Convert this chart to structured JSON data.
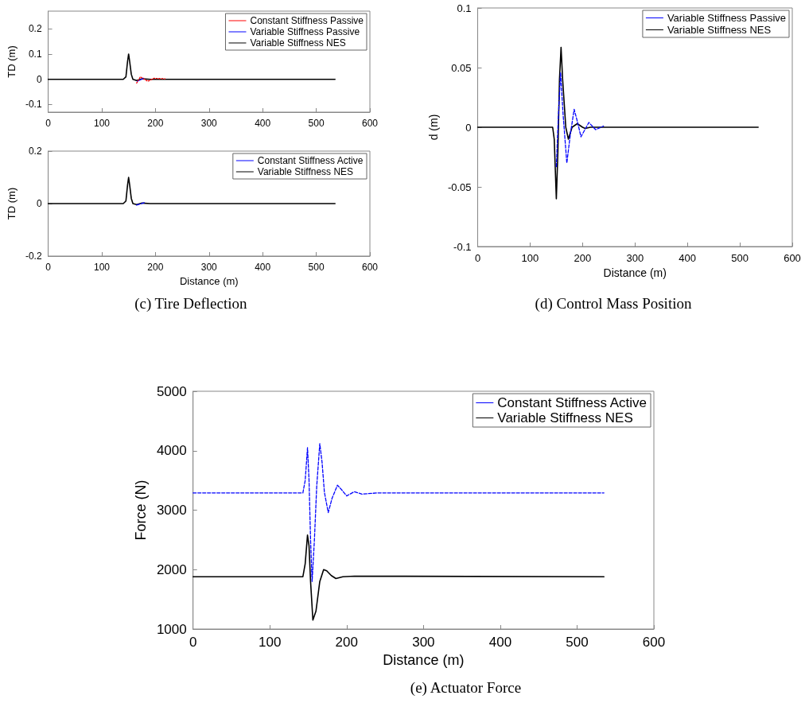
{
  "chart_data": [
    {
      "type": "line",
      "ylabel": "TD (m)",
      "xlim": [
        0,
        600
      ],
      "xticks": [
        0,
        100,
        200,
        300,
        400,
        500,
        600
      ],
      "ylim": [
        -0.13,
        0.27
      ],
      "yticks": [
        -0.1,
        0,
        0.1,
        0.2
      ],
      "grid": false,
      "legend": "top right",
      "marker": "none",
      "series": [
        {
          "name": "Constant Stiffness Passive",
          "color": "#ff0000",
          "line_style": "dotted",
          "x": [
            165,
            172,
            186,
            197,
            218
          ],
          "values": [
            -0.015,
            0.01,
            -0.008,
            0.004,
            0.002
          ]
        },
        {
          "name": "Variable Stiffness Passive",
          "color": "#0000ff",
          "line_style": "solid",
          "x": [
            166,
            178
          ],
          "values": [
            -0.008,
            0.004
          ]
        },
        {
          "name": "Variable Stiffness NES",
          "color": "#000000",
          "line_style": "solid",
          "x": [
            0,
            140,
            145,
            148,
            150,
            152,
            155,
            158,
            165,
            175,
            190,
            535
          ],
          "values": [
            0,
            0,
            0.01,
            0.07,
            0.1,
            0.07,
            0.02,
            0,
            -0.005,
            0.002,
            0,
            0
          ]
        }
      ]
    },
    {
      "type": "line",
      "xlabel": "Distance (m)",
      "ylabel": "TD (m)",
      "xlim": [
        0,
        600
      ],
      "xticks": [
        0,
        100,
        200,
        300,
        400,
        500,
        600
      ],
      "ylim": [
        -0.2,
        0.2
      ],
      "yticks": [
        -0.2,
        0,
        0.2
      ],
      "grid": false,
      "legend": "top right",
      "marker": "none",
      "annotations": [
        "(c) Tire Deflection"
      ],
      "series": [
        {
          "name": "Constant Stiffness Active",
          "color": "#0000ff",
          "line_style": "dashed",
          "x": [
            165,
            180
          ],
          "values": [
            -0.006,
            0.004
          ]
        },
        {
          "name": "Variable Stiffness NES",
          "color": "#000000",
          "line_style": "solid",
          "x": [
            0,
            140,
            145,
            148,
            150,
            152,
            155,
            158,
            165,
            175,
            190,
            535
          ],
          "values": [
            0,
            0,
            0.01,
            0.07,
            0.1,
            0.07,
            0.02,
            0,
            -0.004,
            0.002,
            0,
            0
          ]
        }
      ]
    },
    {
      "type": "line",
      "xlabel": "Distance (m)",
      "ylabel": "d (m)",
      "xlim": [
        0,
        600
      ],
      "xticks": [
        0,
        100,
        200,
        300,
        400,
        500,
        600
      ],
      "ylim": [
        -0.1,
        0.1
      ],
      "yticks": [
        -0.1,
        -0.05,
        0,
        0.05,
        0.1
      ],
      "grid": false,
      "legend": "top right",
      "marker": "none",
      "annotations": [
        "(d) Control Mass Position"
      ],
      "series": [
        {
          "name": "Variable Stiffness Passive",
          "color": "#0000ff",
          "line_style": "dashed",
          "x": [
            150,
            153,
            158,
            163,
            170,
            177,
            184,
            190,
            197,
            212,
            225,
            240
          ],
          "values": [
            -0.033,
            0,
            0.046,
            0.01,
            -0.03,
            -0.005,
            0.015,
            0.005,
            -0.008,
            0.004,
            -0.002,
            0.001
          ]
        },
        {
          "name": "Variable Stiffness NES",
          "color": "#000000",
          "line_style": "solid",
          "x": [
            0,
            143,
            146,
            150,
            153,
            156,
            159,
            162,
            168,
            173,
            180,
            190,
            200,
            205,
            215,
            535
          ],
          "values": [
            0,
            0,
            -0.01,
            -0.06,
            -0.02,
            0.04,
            0.067,
            0.04,
            0,
            -0.01,
            0,
            0.003,
            0,
            -0.001,
            0,
            0
          ]
        }
      ]
    },
    {
      "type": "line",
      "xlabel": "Distance (m)",
      "ylabel": "Force (N)",
      "xlim": [
        0,
        600
      ],
      "xticks": [
        0,
        100,
        200,
        300,
        400,
        500,
        600
      ],
      "ylim": [
        1000,
        5000
      ],
      "yticks": [
        1000,
        2000,
        3000,
        4000,
        5000
      ],
      "grid": false,
      "legend": "top right",
      "marker": "none",
      "annotations": [
        "(e) Actuator Force"
      ],
      "series": [
        {
          "name": "Constant Stiffness Active",
          "color": "#0000ff",
          "line_style": "dashed",
          "x": [
            0,
            143,
            146,
            149,
            151,
            153,
            155,
            158,
            161,
            165,
            168,
            171,
            176,
            181,
            188,
            193,
            200,
            210,
            220,
            240,
            535
          ],
          "values": [
            3290,
            3290,
            3500,
            4050,
            3500,
            2500,
            1800,
            2500,
            3400,
            4120,
            3800,
            3300,
            2960,
            3200,
            3420,
            3350,
            3240,
            3310,
            3270,
            3290,
            3290
          ]
        },
        {
          "name": "Variable Stiffness NES",
          "color": "#000000",
          "line_style": "solid",
          "x": [
            0,
            143,
            146,
            149,
            151,
            153,
            156,
            160,
            165,
            170,
            174,
            180,
            186,
            195,
            210,
            535
          ],
          "values": [
            1880,
            1880,
            2100,
            2580,
            2400,
            1800,
            1150,
            1300,
            1800,
            2000,
            1980,
            1900,
            1850,
            1880,
            1890,
            1880
          ]
        }
      ]
    }
  ]
}
